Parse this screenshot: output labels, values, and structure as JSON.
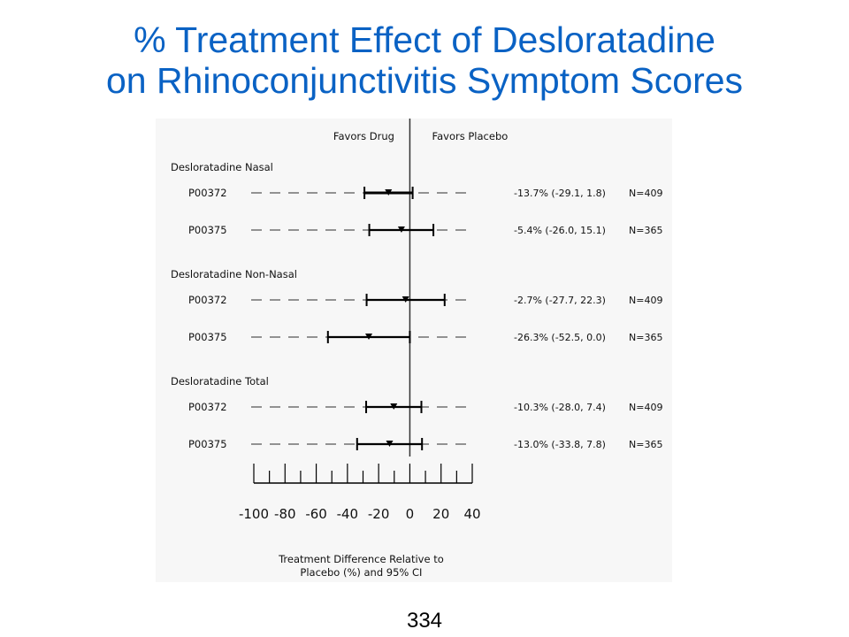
{
  "slide": {
    "title_line1": "% Treatment Effect of Desloratadine",
    "title_line2": "on Rhinoconjunctivitis Symptom Scores",
    "page_number": "334"
  },
  "chart_data": {
    "type": "forest",
    "header_left": "Favors Drug",
    "header_right": "Favors Placebo",
    "xlabel_line1": "Treatment Difference Relative to",
    "xlabel_line2": "Placebo (%) and 95% CI",
    "xlim": [
      -100,
      40
    ],
    "xticks": [
      -100,
      -80,
      -60,
      -40,
      -20,
      0,
      20,
      40
    ],
    "xtick_labels": [
      "-100",
      "-80",
      "-60",
      "-40",
      "-20",
      "0",
      "20",
      "40"
    ],
    "groups": [
      {
        "label": "Desloratadine Nasal",
        "studies": [
          {
            "study": "P00372",
            "estimate": -13.7,
            "lower": -29.1,
            "upper": 1.8,
            "text": "-13.7% (-29.1,  1.8)",
            "n": "N=409"
          },
          {
            "study": "P00375",
            "estimate": -5.4,
            "lower": -26.0,
            "upper": 15.1,
            "text": "-5.4% (-26.0, 15.1)",
            "n": "N=365"
          }
        ]
      },
      {
        "label": "Desloratadine Non-Nasal",
        "studies": [
          {
            "study": "P00372",
            "estimate": -2.7,
            "lower": -27.7,
            "upper": 22.3,
            "text": "-2.7% (-27.7, 22.3)",
            "n": "N=409"
          },
          {
            "study": "P00375",
            "estimate": -26.3,
            "lower": -52.5,
            "upper": 0.0,
            "text": "-26.3% (-52.5, 0.0)",
            "n": "N=365"
          }
        ]
      },
      {
        "label": "Desloratadine Total",
        "studies": [
          {
            "study": "P00372",
            "estimate": -10.3,
            "lower": -28.0,
            "upper": 7.4,
            "text": "-10.3% (-28.0, 7.4)",
            "n": "N=409"
          },
          {
            "study": "P00375",
            "estimate": -13.0,
            "lower": -33.8,
            "upper": 7.8,
            "text": "-13.0% (-33.8, 7.8)",
            "n": "N=365"
          }
        ]
      }
    ]
  }
}
